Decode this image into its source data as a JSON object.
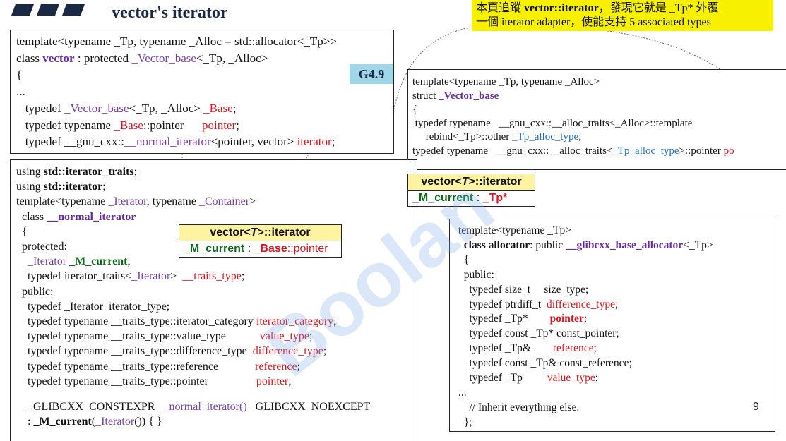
{
  "header": {
    "title": "vector's iterator"
  },
  "note": {
    "lines": [
      [
        "本頁追蹤 ",
        {
          "text": "vector::iterator",
          "style": "bold"
        },
        "，發現它就是 _Tp* 外覆"
      ],
      [
        "一個 iterator adapter，使能支持 5 associated types"
      ]
    ]
  },
  "badge": "G4.9",
  "vector_box": {
    "lines": [
      [
        "template<typename _Tp, typename _Alloc = std::allocator<_Tp>>"
      ],
      [
        "class ",
        {
          "text": "vector",
          "style": "bold-purple"
        },
        " : protected ",
        {
          "text": "_Vector_base",
          "style": "purple"
        },
        "<_Tp, _Alloc>"
      ],
      [
        "{"
      ],
      [
        "..."
      ],
      [
        "   typedef ",
        {
          "text": "_Vector_base",
          "style": "purple"
        },
        "<_Tp, _Alloc> ",
        {
          "text": "_Base",
          "style": "red"
        },
        ";"
      ],
      [
        "   typedef typename ",
        {
          "text": "_Base",
          "style": "red"
        },
        "::pointer      ",
        {
          "text": "pointer",
          "style": "red"
        },
        ";"
      ],
      [
        "   typedef __gnu_cxx::",
        {
          "text": "__normal_iterator",
          "style": "purple"
        },
        "<pointer, vector> ",
        {
          "text": "iterator",
          "style": "red"
        },
        ";"
      ]
    ]
  },
  "vector_base_box": {
    "lines": [
      [
        "template<typename _Tp, typename _Alloc>"
      ],
      [
        "struct ",
        {
          "text": "_Vector_base",
          "style": "bold-purple"
        }
      ],
      [
        "{"
      ],
      [
        " typedef typename   __gnu_cxx::__alloc_traits<_Alloc>::template"
      ],
      [
        "     rebind<_Tp>::other ",
        {
          "text": "_Tp_alloc_type",
          "style": "blue"
        },
        ";"
      ],
      [
        "typedef typename   __gnu_cxx::__alloc_traits<",
        {
          "text": "_Tp_alloc_type",
          "style": "blue"
        },
        ">::pointer ",
        {
          "text": "po",
          "style": "red"
        }
      ]
    ]
  },
  "normal_iterator_box": {
    "lines": [
      [
        "using ",
        {
          "text": "std::iterator_traits",
          "style": "bold"
        },
        ";"
      ],
      [
        "using ",
        {
          "text": "std::iterator",
          "style": "bold"
        },
        ";"
      ],
      [
        "template<typename ",
        {
          "text": "_Iterator",
          "style": "purple"
        },
        ", typename ",
        {
          "text": "_Container",
          "style": "purple"
        },
        ">"
      ],
      [
        "  class ",
        {
          "text": "__normal_iterator",
          "style": "bold-purple"
        }
      ],
      [
        "  {"
      ],
      [
        "  protected:"
      ],
      [
        "    ",
        {
          "text": "_Iterator",
          "style": "purple"
        },
        " ",
        {
          "text": "_M_current",
          "style": "bold-green"
        },
        ";"
      ],
      [
        "    typedef iterator_traits<",
        {
          "text": "_Iterator",
          "style": "purple"
        },
        ">  ",
        {
          "text": "__traits_type",
          "style": "red"
        },
        ";"
      ],
      [
        "  public:"
      ],
      [
        "    typedef _Iterator  iterator_type;"
      ],
      [
        "    typedef typename __traits_type::iterator_category ",
        {
          "text": "iterator_category",
          "style": "red"
        },
        ";"
      ],
      [
        "    typedef typename __traits_type::value_type            ",
        {
          "text": "value_type",
          "style": "red"
        },
        ";"
      ],
      [
        "    typedef typename __traits_type::difference_type  ",
        {
          "text": "difference_type",
          "style": "red"
        },
        ";"
      ],
      [
        "    typedef typename __traits_type::reference             ",
        {
          "text": "reference",
          "style": "red"
        },
        ";"
      ],
      [
        "    typedef typename __traits_type::pointer                 ",
        {
          "text": "pointer",
          "style": "red"
        },
        ";"
      ]
    ],
    "constructor": [
      [
        "    _GLIBCXX_CONSTEXPR ",
        {
          "text": "__normal_iterator()",
          "style": "purple"
        },
        " _GLIBCXX_NOEXCEPT"
      ],
      [
        "    : ",
        {
          "text": "_M_current",
          "style": "bold"
        },
        "(",
        {
          "text": "_Iterator",
          "style": "purple"
        },
        "()) { }"
      ]
    ]
  },
  "allocator_box": {
    "lines": [
      [
        "template<typename _Tp>"
      ],
      [
        "  ",
        {
          "text": "class allocator",
          "style": "bold"
        },
        ": public ",
        {
          "text": "__glibcxx_base_allocator",
          "style": "bold-purple"
        },
        "<_Tp>"
      ],
      [
        "  {"
      ],
      [
        "  public:"
      ],
      [
        "    typedef size_t     size_type;"
      ],
      [
        "    typedef ptrdiff_t  ",
        {
          "text": "difference_type",
          "style": "red"
        },
        ";"
      ],
      [
        "    typedef _Tp*        ",
        {
          "text": "pointer",
          "style": "bold-red"
        },
        ";"
      ],
      [
        "    typedef const _Tp* const_pointer;"
      ],
      [
        "    typedef _Tp&        ",
        {
          "text": "reference",
          "style": "red"
        },
        ";"
      ],
      [
        "    typedef const _Tp& const_reference;"
      ],
      [
        "    typedef _Tp         ",
        {
          "text": "value_type",
          "style": "red"
        },
        ";"
      ],
      [
        "..."
      ],
      [
        "    // Inherit everything else."
      ],
      [
        "  };"
      ]
    ]
  },
  "iterator_card": {
    "title": [
      "vector<",
      {
        "text": "T",
        "style": "italic"
      },
      ">::iterator"
    ],
    "field": [
      {
        "text": "_M_current",
        "style": "bold-green"
      },
      " : ",
      {
        "text": "_Tp*",
        "style": "bold-red"
      }
    ]
  },
  "base_card": {
    "title": [
      "vector<",
      {
        "text": "T",
        "style": "italic"
      },
      ">::iterator"
    ],
    "field": [
      {
        "text": "_M_current",
        "style": "bold-green"
      },
      " : ",
      {
        "text": "_Base",
        "style": "bold-red"
      },
      {
        "text": "::pointer",
        "style": "red"
      }
    ]
  },
  "watermark": "Boolan",
  "page_number": "9"
}
